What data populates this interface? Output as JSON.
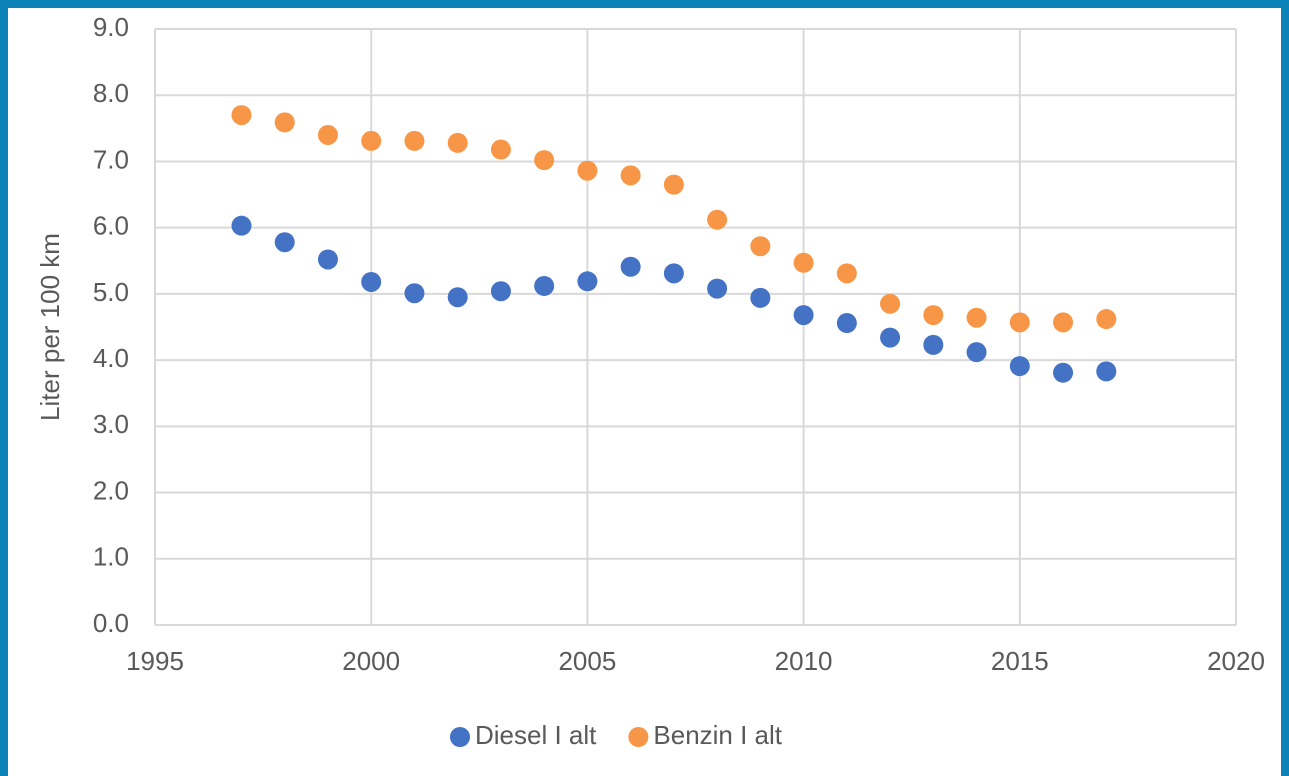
{
  "chart_data": {
    "type": "scatter",
    "y_label": "Liter per 100 km",
    "x": [
      1997,
      1998,
      1999,
      2000,
      2001,
      2002,
      2003,
      2004,
      2005,
      2006,
      2007,
      2008,
      2009,
      2010,
      2011,
      2012,
      2013,
      2014,
      2015,
      2016,
      2017
    ],
    "series": [
      {
        "name": "Diesel I alt",
        "color": "#4472c4",
        "values": [
          6.03,
          5.78,
          5.52,
          5.18,
          5.01,
          4.95,
          5.04,
          5.12,
          5.19,
          5.41,
          5.31,
          5.08,
          4.94,
          4.68,
          4.56,
          4.34,
          4.23,
          4.12,
          3.91,
          3.81,
          3.83
        ]
      },
      {
        "name": "Benzin I alt",
        "color": "#f79646",
        "values": [
          7.7,
          7.59,
          7.4,
          7.31,
          7.31,
          7.28,
          7.18,
          7.02,
          6.86,
          6.79,
          6.65,
          6.12,
          5.72,
          5.47,
          5.31,
          4.85,
          4.68,
          4.64,
          4.57,
          4.57,
          4.62
        ]
      }
    ],
    "xlim": [
      1995,
      2020
    ],
    "xticks": [
      1995,
      2000,
      2005,
      2010,
      2015,
      2020
    ],
    "ylim": [
      0,
      9
    ],
    "yticks": [
      {
        "value": 0,
        "label": "0.0"
      },
      {
        "value": 1,
        "label": "1.0"
      },
      {
        "value": 2,
        "label": "2.0"
      },
      {
        "value": 3,
        "label": "3.0"
      },
      {
        "value": 4,
        "label": "4.0"
      },
      {
        "value": 5,
        "label": "5.0"
      },
      {
        "value": 6,
        "label": "6.0"
      },
      {
        "value": 7,
        "label": "7.0"
      },
      {
        "value": 8,
        "label": "8.0"
      },
      {
        "value": 9,
        "label": "9.0"
      }
    ],
    "grid": true,
    "legend": "bottom"
  }
}
